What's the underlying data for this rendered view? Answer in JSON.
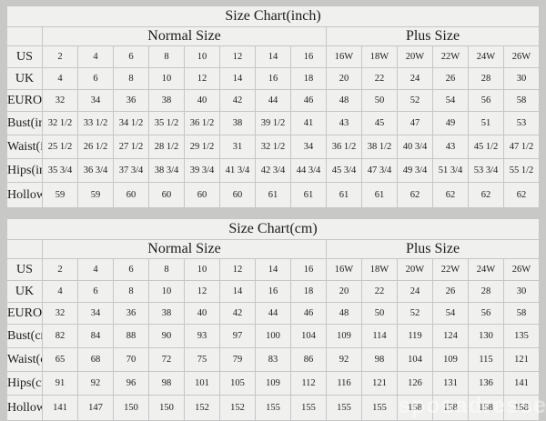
{
  "watermark": "sposadresses",
  "tables": [
    {
      "title": "Size Chart(inch)",
      "normal_header": "Normal Size",
      "plus_header": "Plus Size",
      "rows": [
        {
          "label": "US",
          "normal": [
            "2",
            "4",
            "6",
            "8",
            "10",
            "12",
            "14",
            "16"
          ],
          "plus": [
            "16W",
            "18W",
            "20W",
            "22W",
            "24W",
            "26W"
          ]
        },
        {
          "label": "UK",
          "normal": [
            "4",
            "6",
            "8",
            "10",
            "12",
            "14",
            "16",
            "18"
          ],
          "plus": [
            "20",
            "22",
            "24",
            "26",
            "28",
            "30"
          ]
        },
        {
          "label": "EUROPE",
          "normal": [
            "32",
            "34",
            "36",
            "38",
            "40",
            "42",
            "44",
            "46"
          ],
          "plus": [
            "48",
            "50",
            "52",
            "54",
            "56",
            "58"
          ]
        },
        {
          "label": "Bust(inch)",
          "normal": [
            "32 1/2",
            "33 1/2",
            "34 1/2",
            "35 1/2",
            "36 1/2",
            "38",
            "39 1/2",
            "41"
          ],
          "plus": [
            "43",
            "45",
            "47",
            "49",
            "51",
            "53"
          ]
        },
        {
          "label": "Waist(inch)",
          "normal": [
            "25 1/2",
            "26 1/2",
            "27 1/2",
            "28 1/2",
            "29 1/2",
            "31",
            "32 1/2",
            "34"
          ],
          "plus": [
            "36 1/2",
            "38 1/2",
            "40 3/4",
            "43",
            "45 1/2",
            "47 1/2"
          ]
        },
        {
          "label": "Hips(inch)",
          "normal": [
            "35 3/4",
            "36 3/4",
            "37 3/4",
            "38 3/4",
            "39 3/4",
            "41 3/4",
            "42 3/4",
            "44 3/4"
          ],
          "plus": [
            "45 3/4",
            "47 3/4",
            "49 3/4",
            "51 3/4",
            "53 3/4",
            "55 1/2"
          ]
        },
        {
          "label": "Hollow to Floor(inch)",
          "normal": [
            "59",
            "59",
            "60",
            "60",
            "60",
            "60",
            "61",
            "61"
          ],
          "plus": [
            "61",
            "61",
            "62",
            "62",
            "62",
            "62"
          ]
        }
      ]
    },
    {
      "title": "Size Chart(cm)",
      "normal_header": "Normal Size",
      "plus_header": "Plus Size",
      "rows": [
        {
          "label": "US",
          "normal": [
            "2",
            "4",
            "6",
            "8",
            "10",
            "12",
            "14",
            "16"
          ],
          "plus": [
            "16W",
            "18W",
            "20W",
            "22W",
            "24W",
            "26W"
          ]
        },
        {
          "label": "UK",
          "normal": [
            "4",
            "6",
            "8",
            "10",
            "12",
            "14",
            "16",
            "18"
          ],
          "plus": [
            "20",
            "22",
            "24",
            "26",
            "28",
            "30"
          ]
        },
        {
          "label": "EUROPE",
          "normal": [
            "32",
            "34",
            "36",
            "38",
            "40",
            "42",
            "44",
            "46"
          ],
          "plus": [
            "48",
            "50",
            "52",
            "54",
            "56",
            "58"
          ]
        },
        {
          "label": "Bust(cm)",
          "normal": [
            "82",
            "84",
            "88",
            "90",
            "93",
            "97",
            "100",
            "104"
          ],
          "plus": [
            "109",
            "114",
            "119",
            "124",
            "130",
            "135"
          ]
        },
        {
          "label": "Waist(cm)",
          "normal": [
            "65",
            "68",
            "70",
            "72",
            "75",
            "79",
            "83",
            "86"
          ],
          "plus": [
            "92",
            "98",
            "104",
            "109",
            "115",
            "121"
          ]
        },
        {
          "label": "Hips(cm)",
          "normal": [
            "91",
            "92",
            "96",
            "98",
            "101",
            "105",
            "109",
            "112"
          ],
          "plus": [
            "116",
            "121",
            "126",
            "131",
            "136",
            "141"
          ]
        },
        {
          "label": "Hollow to Floor(cm)",
          "normal": [
            "141",
            "147",
            "150",
            "150",
            "152",
            "152",
            "155",
            "155"
          ],
          "plus": [
            "155",
            "155",
            "158",
            "158",
            "158",
            "158"
          ]
        }
      ]
    }
  ]
}
